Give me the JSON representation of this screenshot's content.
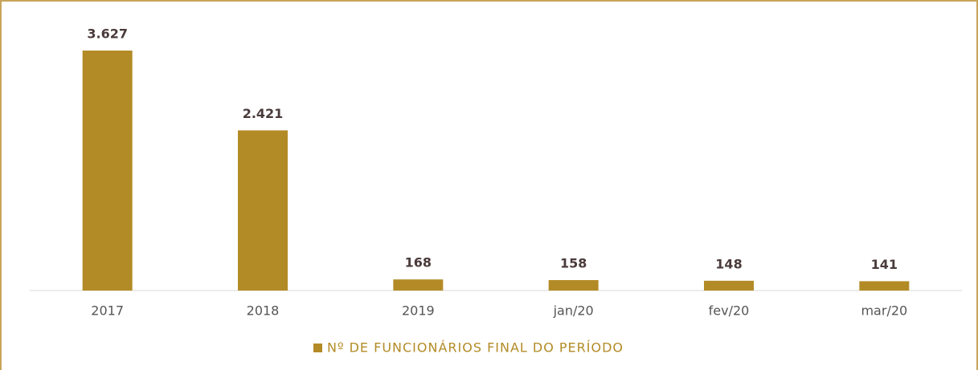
{
  "chart_data": {
    "type": "bar",
    "categories": [
      "2017",
      "2018",
      "2019",
      "jan/20",
      "fev/20",
      "mar/20"
    ],
    "series": [
      {
        "name": "Nº DE FUNCIONÁRIOS FINAL DO PERÍODO",
        "color": "#b38b26",
        "values": [
          3627,
          2421,
          168,
          158,
          148,
          141
        ],
        "value_labels": [
          "3.627",
          "2.421",
          "168",
          "158",
          "148",
          "141"
        ]
      }
    ],
    "legend": "bottom"
  }
}
